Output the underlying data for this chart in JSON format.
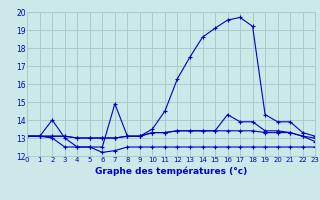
{
  "title": "Graphe des températures (°c)",
  "bg_color": "#cce8e8",
  "grid_color": "#aacaca",
  "line_color": "#0000cc",
  "xlim": [
    0,
    23
  ],
  "ylim": [
    12,
    20
  ],
  "xticks": [
    0,
    1,
    2,
    3,
    4,
    5,
    6,
    7,
    8,
    9,
    10,
    11,
    12,
    13,
    14,
    15,
    16,
    17,
    18,
    19,
    20,
    21,
    22,
    23
  ],
  "yticks": [
    12,
    13,
    14,
    15,
    16,
    17,
    18,
    19,
    20
  ],
  "line1_x": [
    0,
    1,
    2,
    3,
    4,
    5,
    6,
    7,
    8,
    9,
    10,
    11,
    12,
    13,
    14,
    15,
    16,
    17,
    18,
    19,
    20,
    21,
    22,
    23
  ],
  "line1_y": [
    13.1,
    13.1,
    13.1,
    13.1,
    13.0,
    13.0,
    13.0,
    13.0,
    13.1,
    13.1,
    13.3,
    13.3,
    13.4,
    13.4,
    13.4,
    13.4,
    13.4,
    13.4,
    13.4,
    13.3,
    13.3,
    13.3,
    13.1,
    13.0
  ],
  "line2_x": [
    0,
    1,
    2,
    3,
    4,
    5,
    6,
    7,
    8,
    9,
    10,
    11,
    12,
    13,
    14,
    15,
    16,
    17,
    18,
    19,
    20,
    21,
    22,
    23
  ],
  "line2_y": [
    13.1,
    13.1,
    13.0,
    12.5,
    12.5,
    12.5,
    12.2,
    12.3,
    12.5,
    12.5,
    12.5,
    12.5,
    12.5,
    12.5,
    12.5,
    12.5,
    12.5,
    12.5,
    12.5,
    12.5,
    12.5,
    12.5,
    12.5,
    12.5
  ],
  "line3_x": [
    0,
    1,
    2,
    3,
    4,
    5,
    6,
    7,
    8,
    9,
    10,
    11,
    12,
    13,
    14,
    15,
    16,
    17,
    18,
    19,
    20,
    21,
    22,
    23
  ],
  "line3_y": [
    13.1,
    13.1,
    14.0,
    13.0,
    12.5,
    12.5,
    12.5,
    14.9,
    13.1,
    13.1,
    13.5,
    14.5,
    16.3,
    17.5,
    18.6,
    19.1,
    19.55,
    19.7,
    19.2,
    14.3,
    13.9,
    13.9,
    13.3,
    13.1
  ],
  "line4_x": [
    0,
    1,
    2,
    3,
    4,
    5,
    6,
    7,
    8,
    9,
    10,
    11,
    12,
    13,
    14,
    15,
    16,
    17,
    18,
    19,
    20,
    21,
    22,
    23
  ],
  "line4_y": [
    13.1,
    13.1,
    13.1,
    13.1,
    13.0,
    13.0,
    13.0,
    13.0,
    13.1,
    13.1,
    13.3,
    13.3,
    13.4,
    13.4,
    13.4,
    13.4,
    14.3,
    13.9,
    13.9,
    13.4,
    13.4,
    13.3,
    13.1,
    12.8
  ]
}
